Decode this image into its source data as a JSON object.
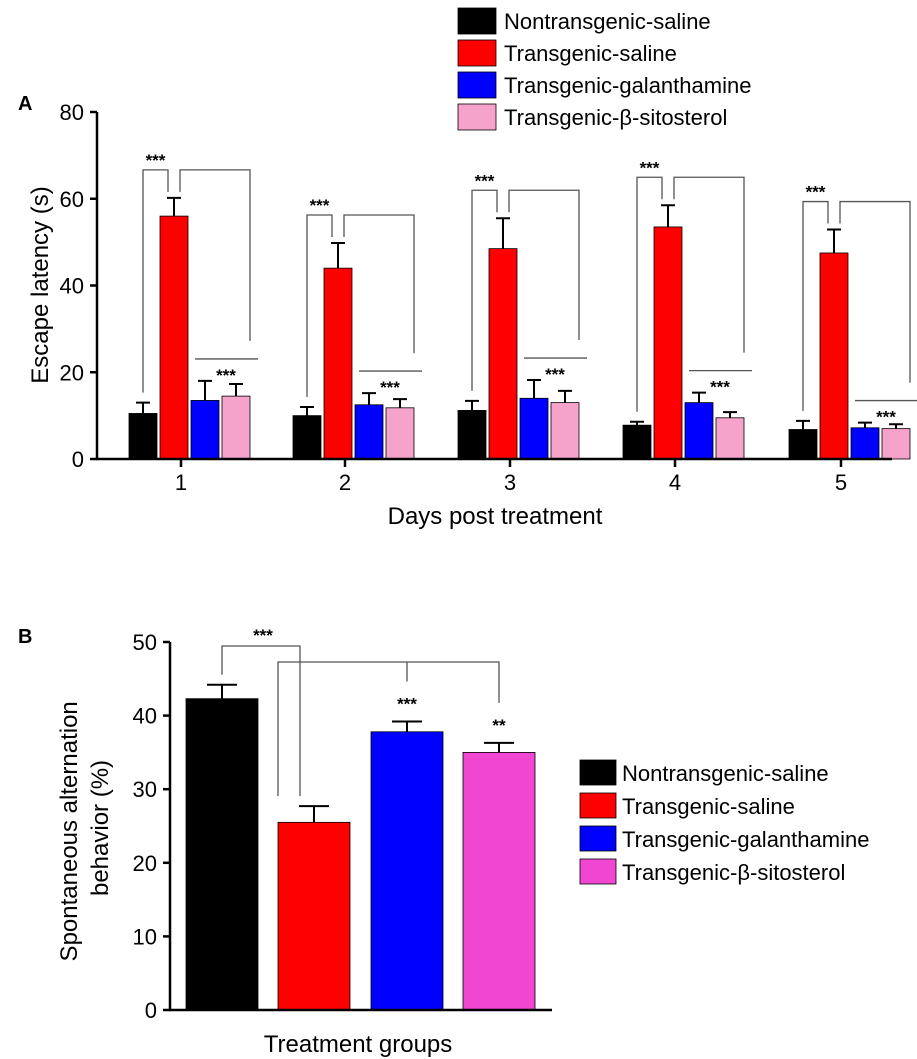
{
  "chart_data": [
    {
      "type": "bar",
      "panel": "A",
      "xlabel": "Days post treatment",
      "ylabel": "Escape latency (s)",
      "ylim": [
        0,
        80
      ],
      "yticks": [
        0,
        20,
        40,
        60,
        80
      ],
      "categories": [
        "1",
        "2",
        "3",
        "4",
        "5"
      ],
      "legend_position": "top-right",
      "series": [
        {
          "name": "Nontransgenic-saline",
          "color": "#000000",
          "values": [
            10.5,
            10.0,
            11.2,
            7.8,
            6.8
          ],
          "errors": [
            2.5,
            2.0,
            2.2,
            0.8,
            2.0
          ]
        },
        {
          "name": "Transgenic-saline",
          "color": "#ff0000",
          "values": [
            56.0,
            44.0,
            48.5,
            53.5,
            47.5
          ],
          "errors": [
            4.2,
            5.8,
            7.0,
            5.0,
            5.4
          ]
        },
        {
          "name": "Transgenic-galanthamine",
          "color": "#0000ff",
          "values": [
            13.5,
            12.5,
            14.0,
            13.0,
            7.2
          ],
          "errors": [
            4.5,
            2.7,
            4.2,
            2.3,
            1.2
          ]
        },
        {
          "name": "Transgenic-β-sitosterol",
          "color": "#f6a3cc",
          "values": [
            14.5,
            11.8,
            13.0,
            9.5,
            7.0
          ],
          "errors": [
            2.8,
            2.0,
            2.7,
            1.3,
            1.0
          ]
        }
      ],
      "annotations": [
        "***",
        "***",
        "***",
        "***",
        "***",
        "***",
        "***",
        "***",
        "***",
        "***"
      ]
    },
    {
      "type": "bar",
      "panel": "B",
      "xlabel": "Treatment groups",
      "ylabel_lines": [
        "Spontaneous alternation",
        "behavior (%)"
      ],
      "ylim": [
        0,
        50
      ],
      "yticks": [
        0,
        10,
        20,
        30,
        40,
        50
      ],
      "legend_position": "right",
      "series": [
        {
          "name": "Nontransgenic-saline",
          "color": "#000000",
          "value": 42.3,
          "error": 1.9
        },
        {
          "name": "Transgenic-saline",
          "color": "#ff0000",
          "value": 25.5,
          "error": 2.2
        },
        {
          "name": "Transgenic-galanthamine",
          "color": "#0000ff",
          "value": 37.8,
          "error": 1.4
        },
        {
          "name": "Transgenic-β-sitosterol",
          "color": "#f046d2",
          "value": 35.0,
          "error": 1.3
        }
      ],
      "annotations": [
        "***",
        "***",
        "**"
      ]
    }
  ]
}
